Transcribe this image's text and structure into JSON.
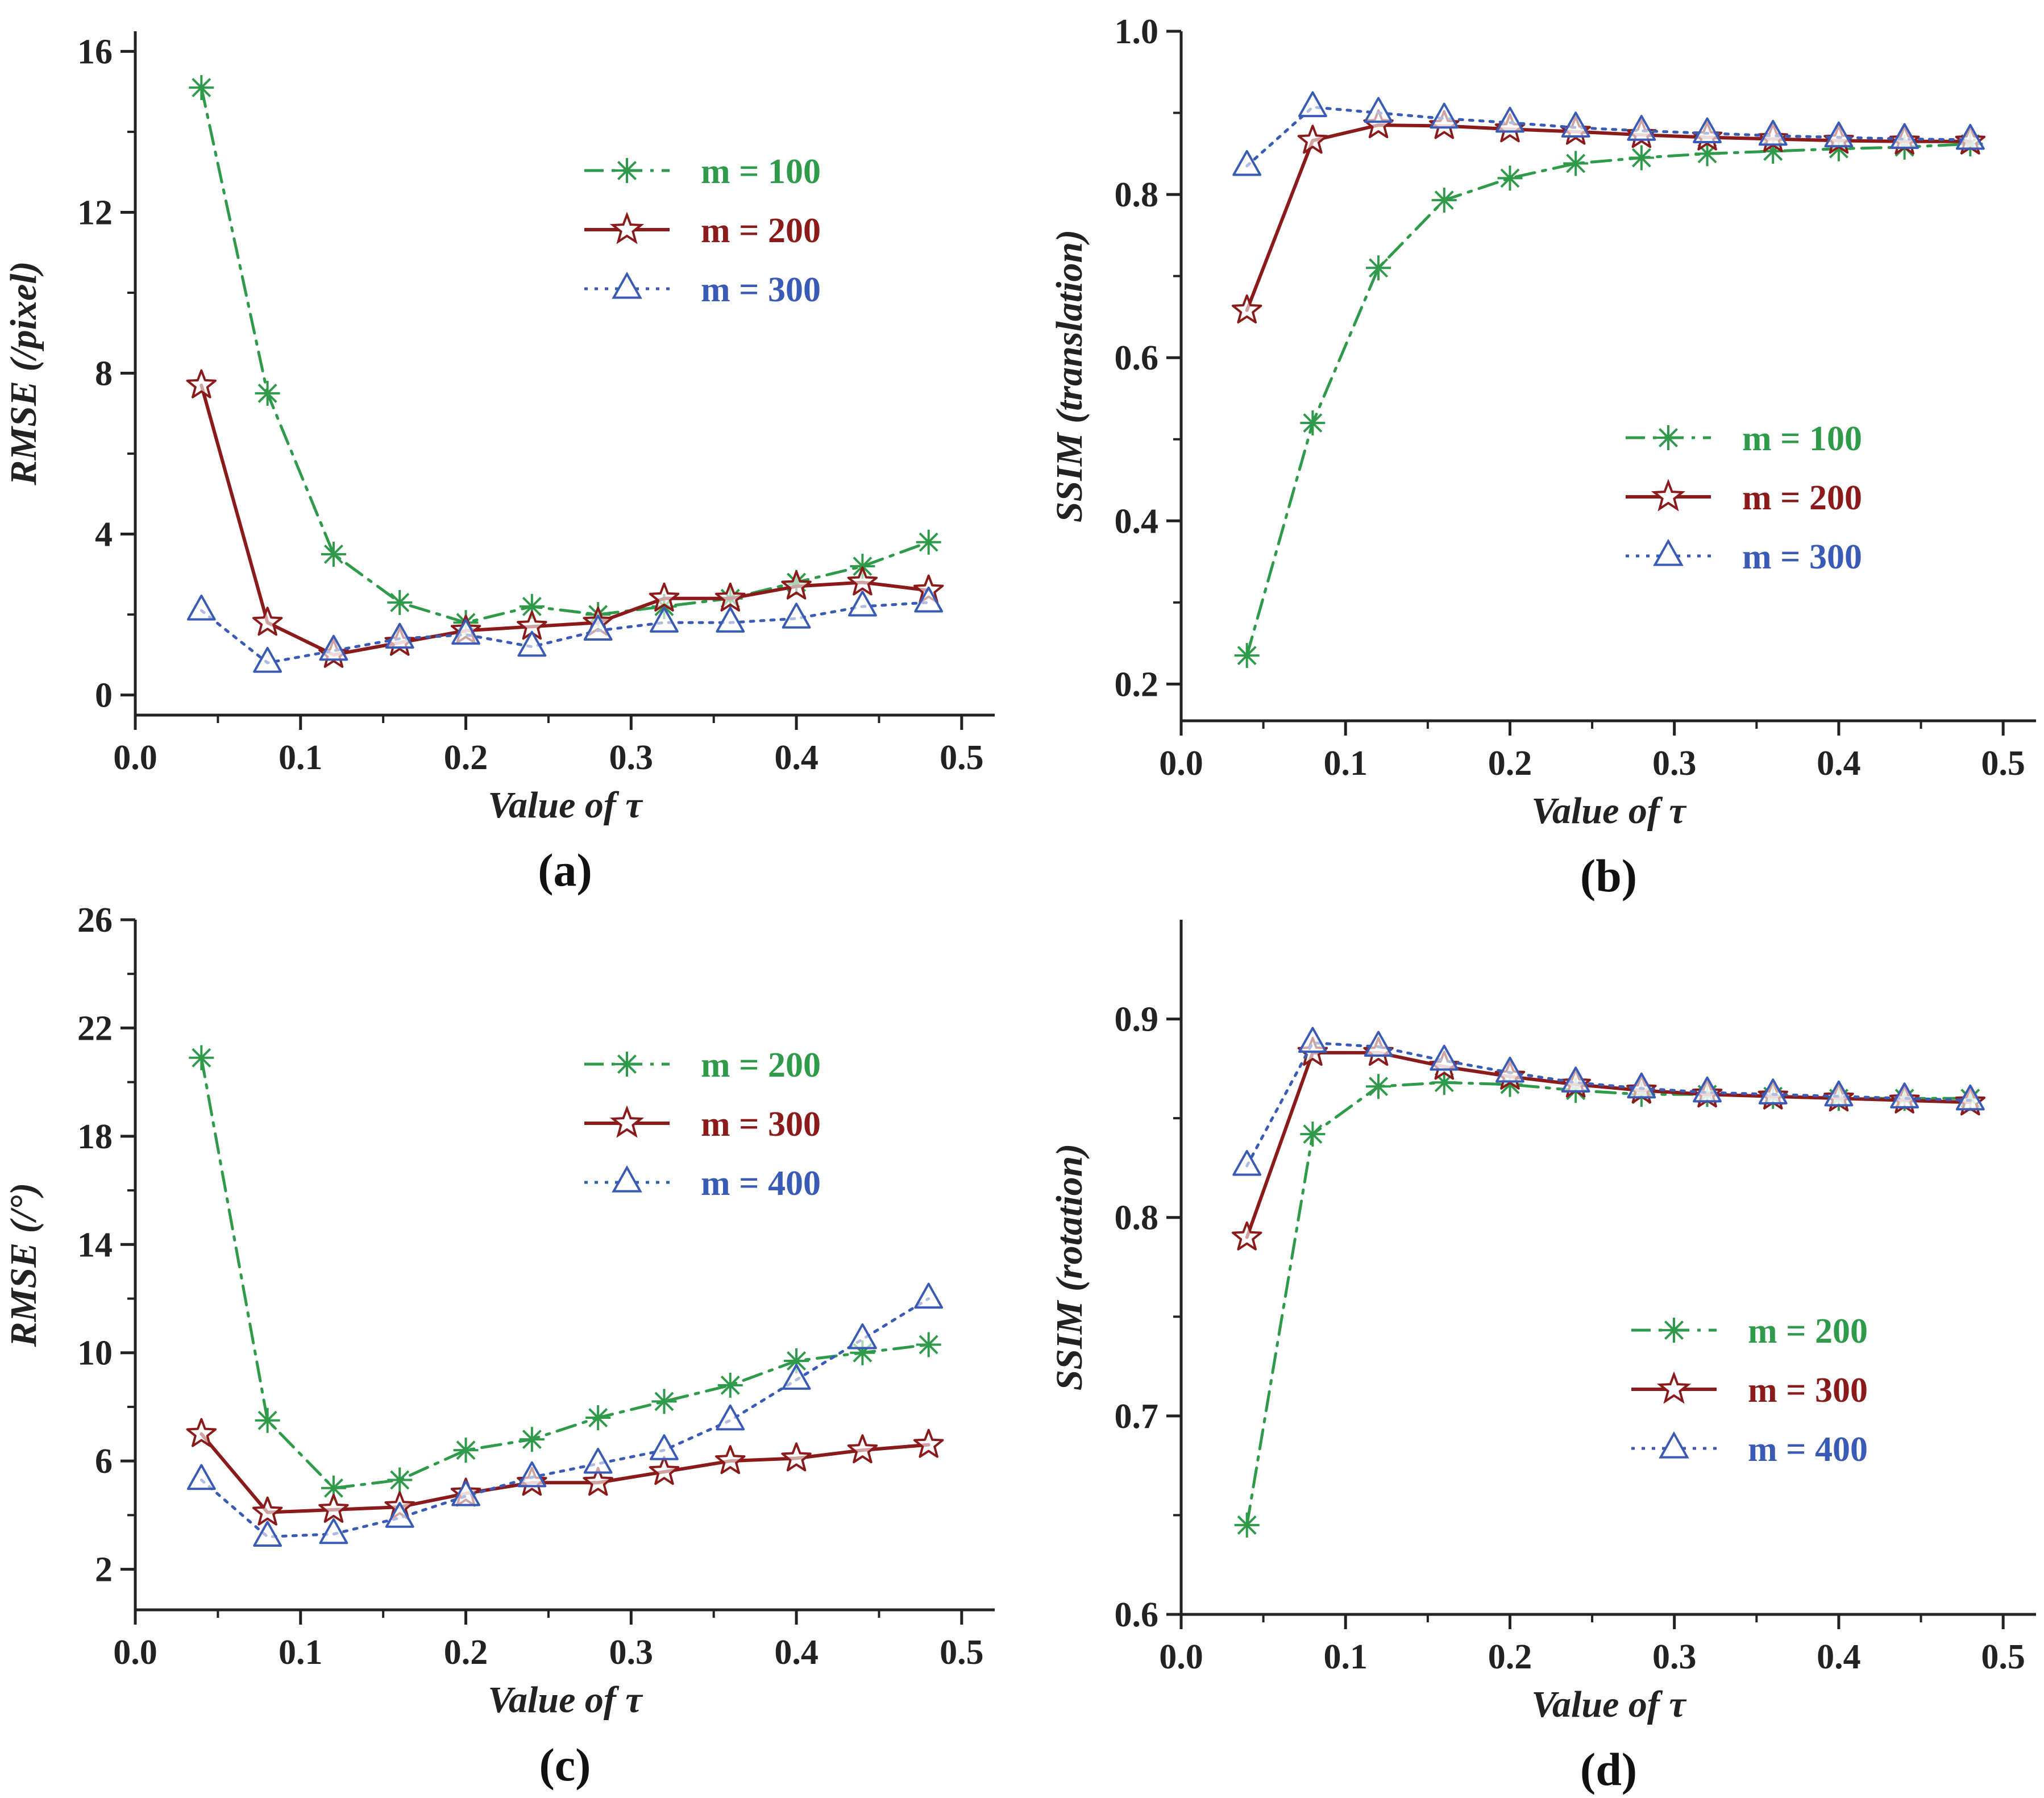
{
  "chart_data": [
    {
      "type": "line",
      "panel_label": "(a)",
      "xlabel": "Value of τ",
      "ylabel": "RMSE (/pixel)",
      "xlim": [
        0.0,
        0.52
      ],
      "ylim": [
        -0.5,
        16.5
      ],
      "xticks": [
        "0.0",
        "0.1",
        "0.2",
        "0.3",
        "0.4",
        "0.5"
      ],
      "yticks": [
        "0",
        "4",
        "8",
        "12",
        "16"
      ],
      "legend_position": "top-right",
      "x": [
        0.04,
        0.08,
        0.12,
        0.16,
        0.2,
        0.24,
        0.28,
        0.32,
        0.36,
        0.4,
        0.44,
        0.48
      ],
      "series": [
        {
          "name": "m = 100",
          "color": "#2e9a4a",
          "marker": "asterisk",
          "dash": "dashdot",
          "values": [
            15.1,
            7.5,
            3.5,
            2.3,
            1.8,
            2.2,
            2.0,
            2.2,
            2.4,
            2.8,
            3.2,
            3.8
          ]
        },
        {
          "name": "m = 200",
          "color": "#8b1a1a",
          "marker": "star",
          "dash": "solid",
          "values": [
            7.7,
            1.8,
            1.0,
            1.3,
            1.6,
            1.7,
            1.8,
            2.4,
            2.4,
            2.7,
            2.8,
            2.6
          ]
        },
        {
          "name": "m = 300",
          "color": "#3a5bb5",
          "marker": "triangle",
          "dash": "dotted",
          "values": [
            2.1,
            0.8,
            1.1,
            1.4,
            1.5,
            1.2,
            1.6,
            1.8,
            1.8,
            1.9,
            2.2,
            2.3
          ]
        }
      ]
    },
    {
      "type": "line",
      "panel_label": "(b)",
      "xlabel": "Value of τ",
      "ylabel": "SSIM (translation)",
      "xlim": [
        0.0,
        0.52
      ],
      "ylim": [
        0.155,
        1.0
      ],
      "xticks": [
        "0.0",
        "0.1",
        "0.2",
        "0.3",
        "0.4",
        "0.5"
      ],
      "yticks": [
        "0.2",
        "0.4",
        "0.6",
        "0.8",
        "1.0"
      ],
      "legend_position": "center-right",
      "x": [
        0.04,
        0.08,
        0.12,
        0.16,
        0.2,
        0.24,
        0.28,
        0.32,
        0.36,
        0.4,
        0.44,
        0.48
      ],
      "series": [
        {
          "name": "m = 100",
          "color": "#2e9a4a",
          "marker": "asterisk",
          "dash": "dashdot",
          "values": [
            0.235,
            0.52,
            0.71,
            0.793,
            0.82,
            0.838,
            0.845,
            0.85,
            0.853,
            0.856,
            0.858,
            0.862
          ]
        },
        {
          "name": "m = 200",
          "color": "#8b1a1a",
          "marker": "star",
          "dash": "solid",
          "values": [
            0.658,
            0.866,
            0.885,
            0.884,
            0.88,
            0.877,
            0.873,
            0.87,
            0.868,
            0.866,
            0.865,
            0.865
          ]
        },
        {
          "name": "m = 300",
          "color": "#3a5bb5",
          "marker": "triangle",
          "dash": "dotted",
          "values": [
            0.835,
            0.907,
            0.9,
            0.893,
            0.888,
            0.882,
            0.878,
            0.875,
            0.872,
            0.87,
            0.868,
            0.867
          ]
        }
      ]
    },
    {
      "type": "line",
      "panel_label": "(c)",
      "xlabel": "Value of τ",
      "ylabel": "RMSE (/°)",
      "xlim": [
        0.0,
        0.52
      ],
      "ylim": [
        0.5,
        26.0
      ],
      "xticks": [
        "0.0",
        "0.1",
        "0.2",
        "0.3",
        "0.4",
        "0.5"
      ],
      "yticks": [
        "2",
        "6",
        "10",
        "14",
        "18",
        "22",
        "26"
      ],
      "legend_position": "top-right",
      "x": [
        0.04,
        0.08,
        0.12,
        0.16,
        0.2,
        0.24,
        0.28,
        0.32,
        0.36,
        0.4,
        0.44,
        0.48
      ],
      "series": [
        {
          "name": "m = 200",
          "color": "#2e9a4a",
          "marker": "asterisk",
          "dash": "dashdot",
          "values": [
            20.9,
            7.5,
            5.0,
            5.3,
            6.4,
            6.8,
            7.6,
            8.2,
            8.8,
            9.7,
            10.0,
            10.3
          ]
        },
        {
          "name": "m = 300",
          "color": "#8b1a1a",
          "marker": "star",
          "dash": "solid",
          "values": [
            7.0,
            4.1,
            4.2,
            4.3,
            4.8,
            5.2,
            5.2,
            5.6,
            6.0,
            6.1,
            6.4,
            6.6
          ]
        },
        {
          "name": "m = 400",
          "color": "#3a5bb5",
          "marker": "triangle",
          "dash": "dotted",
          "values": [
            5.3,
            3.2,
            3.3,
            3.9,
            4.7,
            5.4,
            5.9,
            6.4,
            7.5,
            9.0,
            10.5,
            12.0
          ]
        }
      ]
    },
    {
      "type": "line",
      "panel_label": "(d)",
      "xlabel": "Value of τ",
      "ylabel": "SSIM (rotation)",
      "xlim": [
        0.0,
        0.52
      ],
      "ylim": [
        0.6,
        0.95
      ],
      "xticks": [
        "0.0",
        "0.1",
        "0.2",
        "0.3",
        "0.4",
        "0.5"
      ],
      "yticks": [
        "0.6",
        "0.7",
        "0.8",
        "0.9"
      ],
      "legend_position": "bottom-right",
      "x": [
        0.04,
        0.08,
        0.12,
        0.16,
        0.2,
        0.24,
        0.28,
        0.32,
        0.36,
        0.4,
        0.44,
        0.48
      ],
      "series": [
        {
          "name": "m = 200",
          "color": "#2e9a4a",
          "marker": "asterisk",
          "dash": "dashdot",
          "values": [
            0.645,
            0.842,
            0.866,
            0.868,
            0.867,
            0.864,
            0.862,
            0.862,
            0.861,
            0.86,
            0.86,
            0.86
          ]
        },
        {
          "name": "m = 300",
          "color": "#8b1a1a",
          "marker": "star",
          "dash": "solid",
          "values": [
            0.79,
            0.883,
            0.883,
            0.876,
            0.871,
            0.867,
            0.864,
            0.862,
            0.861,
            0.86,
            0.859,
            0.858
          ]
        },
        {
          "name": "m = 400",
          "color": "#3a5bb5",
          "marker": "triangle",
          "dash": "dotted",
          "values": [
            0.826,
            0.888,
            0.886,
            0.879,
            0.873,
            0.868,
            0.865,
            0.863,
            0.862,
            0.861,
            0.86,
            0.859
          ]
        }
      ]
    }
  ]
}
